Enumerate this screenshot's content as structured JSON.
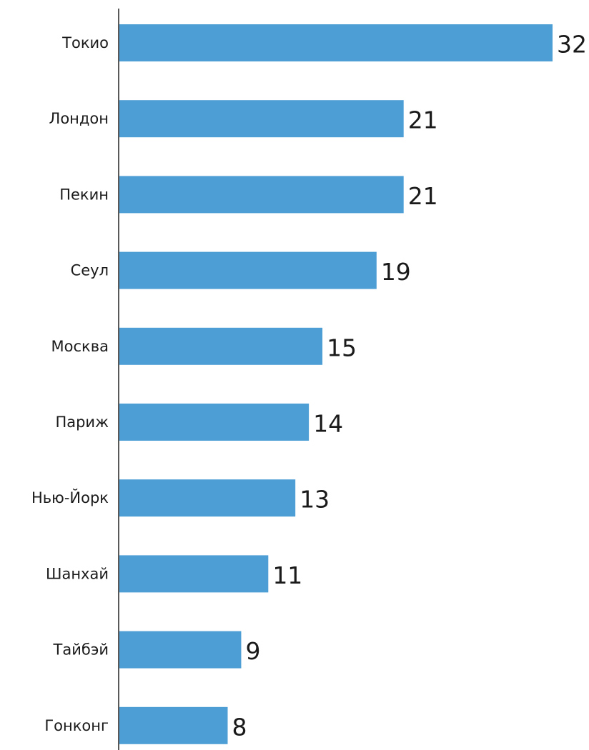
{
  "colors": {
    "bar": "#4e9ed6",
    "axis": "#222222",
    "text": "#1a1a1a"
  },
  "chart_data": {
    "type": "bar",
    "orientation": "horizontal",
    "title": "",
    "xlabel": "",
    "ylabel": "",
    "grid": false,
    "legend": "none",
    "xlim": [
      0,
      32
    ],
    "categories": [
      "Токио",
      "Лондон",
      "Пекин",
      "Сеул",
      "Москва",
      "Париж",
      "Нью-Йорк",
      "Шанхай",
      "Тайбэй",
      "Гонконг"
    ],
    "values": [
      32,
      21,
      21,
      19,
      15,
      14,
      13,
      11,
      9,
      8
    ],
    "value_labels": [
      "32",
      "21",
      "21",
      "19",
      "15",
      "14",
      "13",
      "11",
      "9",
      "8"
    ]
  }
}
